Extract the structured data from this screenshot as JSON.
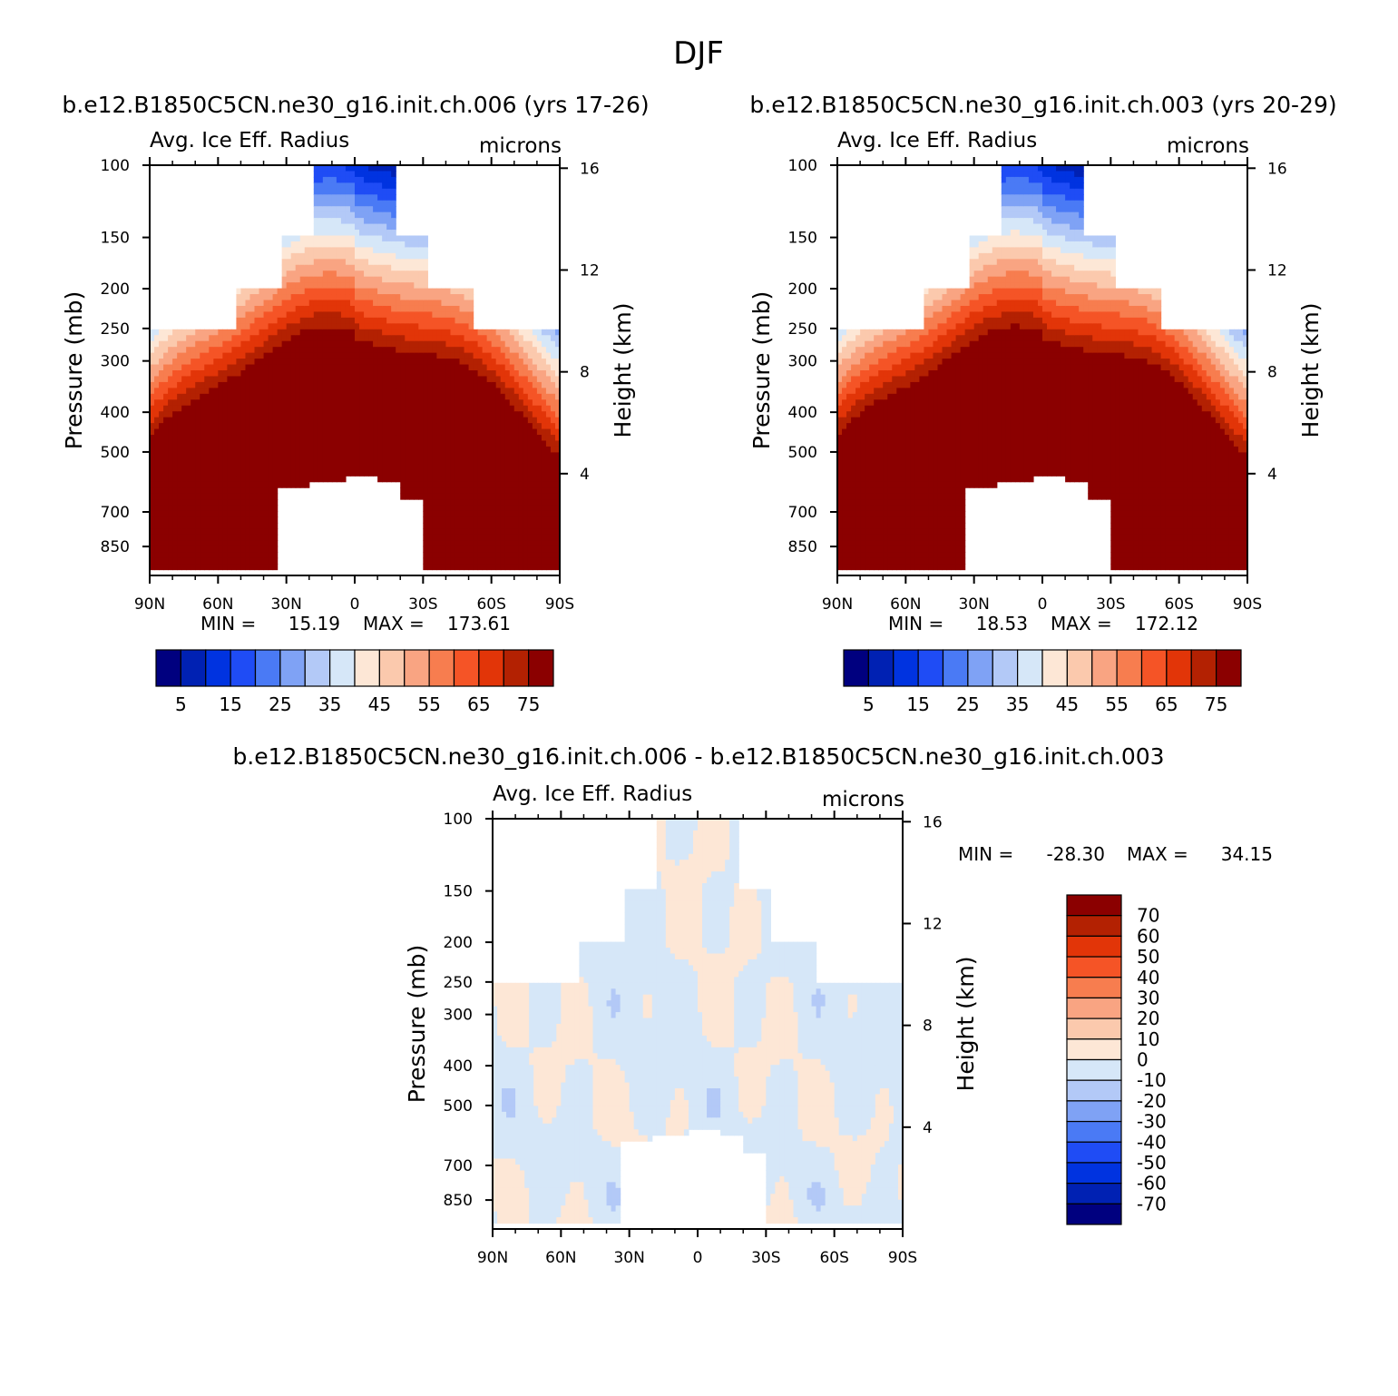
{
  "main_title": "DJF",
  "colors": {
    "abs_palette": [
      "#00007f",
      "#0021b3",
      "#0033e0",
      "#1f4cf5",
      "#4a7af5",
      "#7fa2f5",
      "#b3c9f7",
      "#d6e7f8",
      "#fde7d6",
      "#fbc9ad",
      "#f9a482",
      "#f77d4f",
      "#f55426",
      "#e23508",
      "#b32102",
      "#8b0000"
    ],
    "diff_palette": [
      "#00007f",
      "#0021b3",
      "#0033e0",
      "#1f4cf5",
      "#4a7af5",
      "#7fa2f5",
      "#b3c9f7",
      "#d6e7f8",
      "#fde7d6",
      "#fbc9ad",
      "#f9a482",
      "#f77d4f",
      "#f55426",
      "#e23508",
      "#b32102",
      "#8b0000"
    ]
  },
  "chart_data": [
    {
      "type": "heatmap",
      "id": "left",
      "title": "b.e12.B1850C5CN.ne30_g16.init.ch.006 (yrs 17-26)",
      "variable": "Avg. Ice Eff. Radius",
      "units": "microns",
      "xlabel": "",
      "ylabel": "Pressure (mb)",
      "y2label": "Height (km)",
      "x_ticks": [
        "90N",
        "60N",
        "30N",
        "0",
        "30S",
        "60S",
        "90S"
      ],
      "y_ticks": [
        "100",
        "150",
        "200",
        "250",
        "300",
        "400",
        "500",
        "700",
        "850"
      ],
      "y_values": [
        100,
        150,
        200,
        250,
        300,
        400,
        500,
        700,
        850
      ],
      "y2_ticks": [
        "16",
        "12",
        "8",
        "4"
      ],
      "y2_values": [
        16,
        12,
        8,
        4
      ],
      "ylim": [
        1000,
        100
      ],
      "min_label": "MIN =",
      "min_value": "15.19",
      "max_label": "MAX =",
      "max_value": "173.61",
      "colorbar_labels": [
        "5",
        "15",
        "25",
        "35",
        "45",
        "55",
        "65",
        "75"
      ],
      "colorbar_levels": [
        0,
        5,
        10,
        15,
        20,
        25,
        30,
        35,
        40,
        45,
        50,
        55,
        60,
        65,
        70,
        75,
        80
      ]
    },
    {
      "type": "heatmap",
      "id": "right",
      "title": "b.e12.B1850C5CN.ne30_g16.init.ch.003 (yrs 20-29)",
      "variable": "Avg. Ice Eff. Radius",
      "units": "microns",
      "xlabel": "",
      "ylabel": "Pressure (mb)",
      "y2label": "Height (km)",
      "x_ticks": [
        "90N",
        "60N",
        "30N",
        "0",
        "30S",
        "60S",
        "90S"
      ],
      "y_ticks": [
        "100",
        "150",
        "200",
        "250",
        "300",
        "400",
        "500",
        "700",
        "850"
      ],
      "y_values": [
        100,
        150,
        200,
        250,
        300,
        400,
        500,
        700,
        850
      ],
      "y2_ticks": [
        "16",
        "12",
        "8",
        "4"
      ],
      "y2_values": [
        16,
        12,
        8,
        4
      ],
      "ylim": [
        1000,
        100
      ],
      "min_label": "MIN =",
      "min_value": "18.53",
      "max_label": "MAX =",
      "max_value": "172.12",
      "colorbar_labels": [
        "5",
        "15",
        "25",
        "35",
        "45",
        "55",
        "65",
        "75"
      ],
      "colorbar_levels": [
        0,
        5,
        10,
        15,
        20,
        25,
        30,
        35,
        40,
        45,
        50,
        55,
        60,
        65,
        70,
        75,
        80
      ]
    },
    {
      "type": "heatmap",
      "id": "diff",
      "title": "b.e12.B1850C5CN.ne30_g16.init.ch.006 - b.e12.B1850C5CN.ne30_g16.init.ch.003",
      "variable": "Avg. Ice Eff. Radius",
      "units": "microns",
      "xlabel": "",
      "ylabel": "Pressure (mb)",
      "y2label": "Height (km)",
      "x_ticks": [
        "90N",
        "60N",
        "30N",
        "0",
        "30S",
        "60S",
        "90S"
      ],
      "y_ticks": [
        "100",
        "150",
        "200",
        "250",
        "300",
        "400",
        "500",
        "700",
        "850"
      ],
      "y_values": [
        100,
        150,
        200,
        250,
        300,
        400,
        500,
        700,
        850
      ],
      "y2_ticks": [
        "16",
        "12",
        "8",
        "4"
      ],
      "y2_values": [
        16,
        12,
        8,
        4
      ],
      "ylim": [
        1000,
        100
      ],
      "min_label": "MIN =",
      "min_value": "-28.30",
      "max_label": "MAX =",
      "max_value": "34.15",
      "colorbar_labels": [
        "70",
        "60",
        "50",
        "40",
        "30",
        "20",
        "10",
        "0",
        "-10",
        "-20",
        "-30",
        "-40",
        "-50",
        "-60",
        "-70"
      ],
      "colorbar_levels": [
        -80,
        -70,
        -60,
        -50,
        -40,
        -30,
        -20,
        -10,
        0,
        10,
        20,
        30,
        40,
        50,
        60,
        70,
        80
      ]
    }
  ]
}
